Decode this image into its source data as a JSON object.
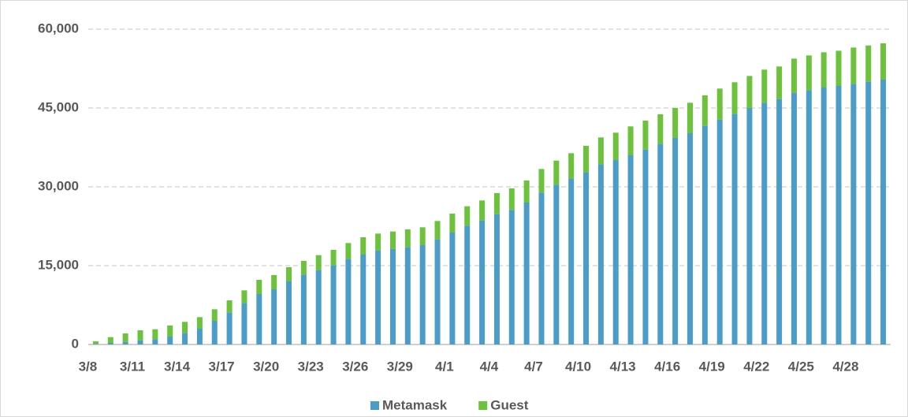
{
  "chart_data": {
    "type": "stacked_bar",
    "categories": [
      "3/8",
      null,
      null,
      "3/11",
      null,
      null,
      "3/14",
      null,
      null,
      "3/17",
      null,
      null,
      "3/20",
      null,
      null,
      "3/23",
      null,
      null,
      "3/26",
      null,
      null,
      "3/29",
      null,
      null,
      "4/1",
      null,
      null,
      "4/4",
      null,
      null,
      "4/7",
      null,
      null,
      "4/10",
      null,
      null,
      "4/13",
      null,
      null,
      "4/16",
      null,
      null,
      "4/19",
      null,
      null,
      "4/22",
      null,
      null,
      "4/25",
      null,
      null,
      "4/28",
      null,
      null
    ],
    "series": [
      {
        "name": "Metamask",
        "color": "#4a9cc9",
        "values": [
          100,
          300,
          500,
          800,
          1000,
          1500,
          2200,
          3000,
          4500,
          6100,
          7900,
          9600,
          10500,
          12000,
          13300,
          14200,
          15100,
          16300,
          17100,
          17900,
          18200,
          18500,
          18900,
          20000,
          21300,
          22600,
          23600,
          24800,
          25600,
          27000,
          28900,
          30400,
          31600,
          32800,
          34300,
          35100,
          36000,
          37100,
          38200,
          39300,
          40200,
          41600,
          42800,
          43900,
          45000,
          46000,
          46700,
          47900,
          48400,
          48900,
          49200,
          49600,
          50000,
          50400
        ]
      },
      {
        "name": "Guest",
        "color": "#6cc23a",
        "values": [
          500,
          1100,
          1600,
          1900,
          1900,
          2100,
          2100,
          2200,
          2200,
          2300,
          2400,
          2700,
          2700,
          2700,
          2600,
          2800,
          2900,
          3000,
          3300,
          3200,
          3300,
          3400,
          3400,
          3500,
          3600,
          3700,
          3800,
          4000,
          4100,
          4200,
          4500,
          4600,
          4800,
          5000,
          5100,
          5200,
          5500,
          5500,
          5600,
          5700,
          5800,
          5800,
          5900,
          6000,
          6100,
          6300,
          6200,
          6500,
          6600,
          6700,
          6700,
          6900,
          6900,
          6900
        ]
      }
    ],
    "ylim": [
      0,
      60000
    ],
    "yticks": [
      0,
      {
        "value": 15000,
        "label": "15,000"
      },
      {
        "value": 30000,
        "label": "30,000"
      },
      {
        "value": 45000,
        "label": "45,000"
      },
      {
        "value": 60000,
        "label": "60,000"
      }
    ],
    "grid": true,
    "legend": "bottom"
  }
}
